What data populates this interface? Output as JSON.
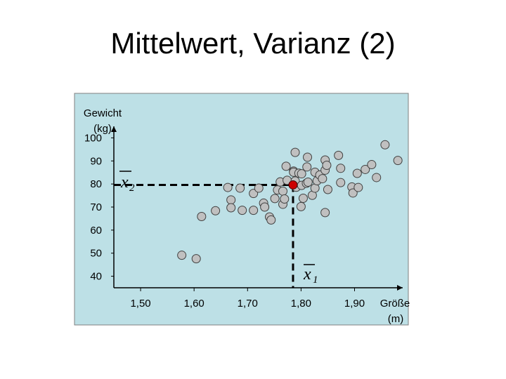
{
  "title": "Mittelwert, Varianz (2)",
  "chart_data": {
    "type": "scatter",
    "ylabel_line1": "Gewicht",
    "ylabel_line2": "(kg)",
    "xlabel_line1": "Größe",
    "xlabel_line2": "(m)",
    "xlim": [
      1.45,
      1.99
    ],
    "ylim": [
      35,
      105
    ],
    "x_ticks": [
      1.5,
      1.6,
      1.7,
      1.8,
      1.9
    ],
    "x_tick_labels": [
      "1,50",
      "1,60",
      "1,70",
      "1,80",
      "1,90"
    ],
    "y_ticks": [
      40,
      50,
      60,
      70,
      80,
      90,
      100
    ],
    "y_tick_labels": [
      "40",
      "50",
      "60",
      "70",
      "80",
      "90",
      "100"
    ],
    "mean_x_label": "x",
    "mean_x_sub": "1",
    "mean_y_label": "x",
    "mean_y_sub": "2",
    "mean": {
      "x": 1.785,
      "y": 79.6
    },
    "colors": {
      "background": "#bde0e6",
      "points": "#c0c0c0",
      "mean_point": "#cc0000"
    },
    "points": [
      [
        1.577,
        49.1
      ],
      [
        1.604,
        47.6
      ],
      [
        1.614,
        65.9
      ],
      [
        1.64,
        68.4
      ],
      [
        1.663,
        78.5
      ],
      [
        1.669,
        73.1
      ],
      [
        1.669,
        69.7
      ],
      [
        1.686,
        78.2
      ],
      [
        1.69,
        68.6
      ],
      [
        1.711,
        75.9
      ],
      [
        1.711,
        68.6
      ],
      [
        1.73,
        71.7
      ],
      [
        1.721,
        78.2
      ],
      [
        1.732,
        70.0
      ],
      [
        1.741,
        65.7
      ],
      [
        1.744,
        64.4
      ],
      [
        1.751,
        73.7
      ],
      [
        1.756,
        77.4
      ],
      [
        1.761,
        80.9
      ],
      [
        1.766,
        71.2
      ],
      [
        1.766,
        76.9
      ],
      [
        1.769,
        73.5
      ],
      [
        1.772,
        87.7
      ],
      [
        1.774,
        81.6
      ],
      [
        1.789,
        93.7
      ],
      [
        1.786,
        85.6
      ],
      [
        1.786,
        85.1
      ],
      [
        1.791,
        78.6
      ],
      [
        1.789,
        81.3
      ],
      [
        1.796,
        84.7
      ],
      [
        1.801,
        79.4
      ],
      [
        1.804,
        73.8
      ],
      [
        1.801,
        84.4
      ],
      [
        1.81,
        80.3
      ],
      [
        1.813,
        80.8
      ],
      [
        1.811,
        87.4
      ],
      [
        1.812,
        91.6
      ],
      [
        1.821,
        75.1
      ],
      [
        1.826,
        85.1
      ],
      [
        1.826,
        78.2
      ],
      [
        1.83,
        81.4
      ],
      [
        1.835,
        83.9
      ],
      [
        1.84,
        82.3
      ],
      [
        1.845,
        90.4
      ],
      [
        1.845,
        86.0
      ],
      [
        1.848,
        88.1
      ],
      [
        1.85,
        77.6
      ],
      [
        1.87,
        92.4
      ],
      [
        1.874,
        86.8
      ],
      [
        1.874,
        80.6
      ],
      [
        1.895,
        78.7
      ],
      [
        1.897,
        76.1
      ],
      [
        1.905,
        84.6
      ],
      [
        1.907,
        78.5
      ],
      [
        1.92,
        86.3
      ],
      [
        1.932,
        88.4
      ],
      [
        1.941,
        82.8
      ],
      [
        1.957,
        97.0
      ],
      [
        1.981,
        90.2
      ],
      [
        1.845,
        67.6
      ],
      [
        1.8,
        70.2
      ]
    ]
  }
}
